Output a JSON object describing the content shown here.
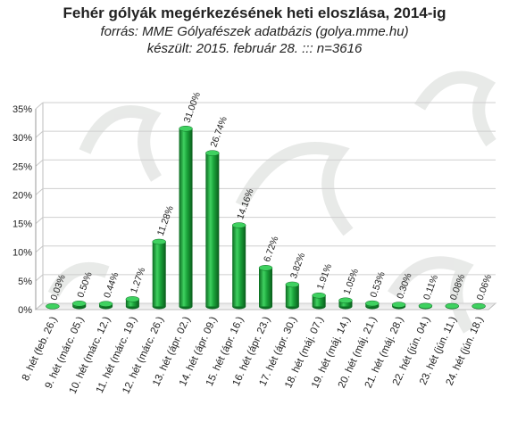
{
  "chart_data": {
    "type": "bar",
    "title": "Fehér gólyák megérkezésének heti eloszlása,  2014-ig",
    "subtitle": "forrás: MME Gólyafészek adatbázis (golya.mme.hu)",
    "subtitle2": "készült: 2015. február 28. ::: n=3616",
    "categories": [
      "8. hét (feb. 26.)",
      "9. hét (márc. 05.)",
      "10. hét (márc. 12.)",
      "11. hét (márc. 19.)",
      "12. hét (márc. 26.)",
      "13. hét (ápr. 02.)",
      "14. hét (ápr. 09.)",
      "15. hét (ápr. 16.)",
      "16. hét (ápr. 23.)",
      "17. hét (ápr. 30.)",
      "18. hét (máj. 07.)",
      "19. hét (máj. 14.)",
      "20. hét (máj. 21.)",
      "21. hét (máj. 28.)",
      "22. hét (jún. 04.)",
      "23. hét (jún. 11.)",
      "24. hét (jún. 18.)"
    ],
    "values": [
      0.03,
      0.5,
      0.44,
      1.27,
      11.28,
      31.0,
      26.74,
      14.16,
      6.72,
      3.82,
      1.91,
      1.05,
      0.53,
      0.3,
      0.11,
      0.08,
      0.06
    ],
    "value_labels": [
      "0.03%",
      "0.50%",
      "0.44%",
      "1.27%",
      "11.28%",
      "31.00%",
      "26.74%",
      "14.16%",
      "6.72%",
      "3.82%",
      "1.91%",
      "1.05%",
      "0.53%",
      "0.30%",
      "0.11%",
      "0.08%",
      "0.06%"
    ],
    "yticks": [
      "0%",
      "5%",
      "10%",
      "15%",
      "20%",
      "25%",
      "30%",
      "35%"
    ],
    "ylim": [
      0,
      35
    ],
    "grid": true,
    "legend": false,
    "bar_color": "#1aa33a",
    "bar_color_light": "#3fd160",
    "bar_color_dark": "#0c6e23"
  }
}
